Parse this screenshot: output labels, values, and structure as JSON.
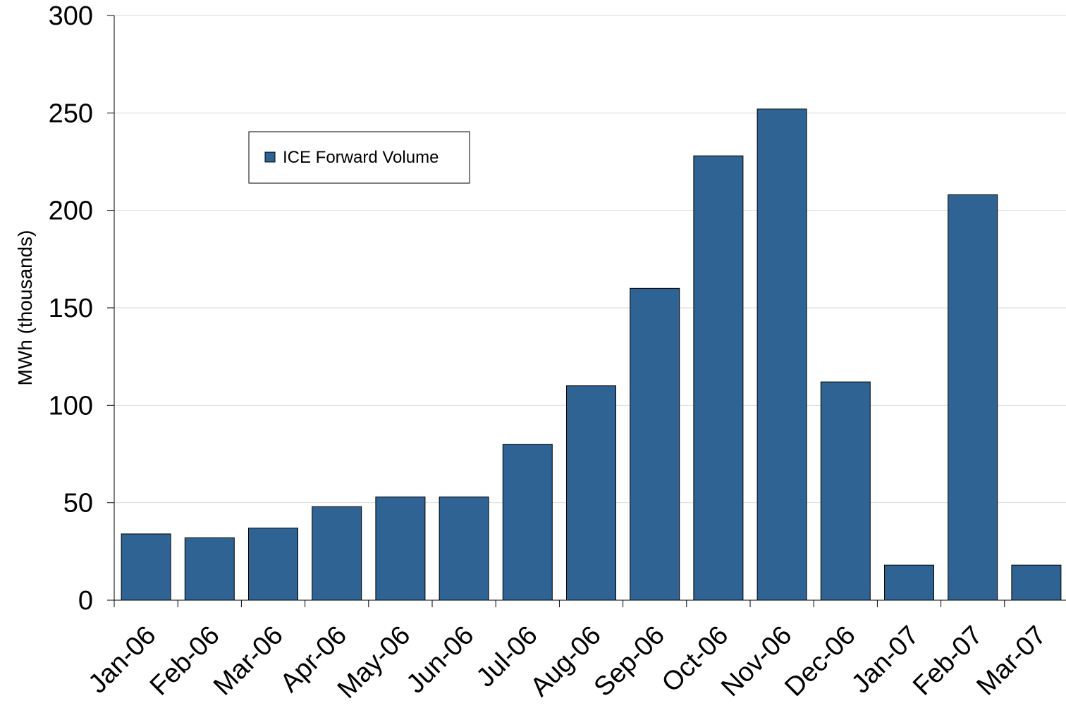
{
  "chart_data": {
    "type": "bar",
    "title": "",
    "xlabel": "",
    "ylabel": "MWh (thousands)",
    "ylim": [
      0,
      300
    ],
    "yticks": [
      0,
      50,
      100,
      150,
      200,
      250,
      300
    ],
    "grid": true,
    "legend_position": "upper-left",
    "categories": [
      "Jan-06",
      "Feb-06",
      "Mar-06",
      "Apr-06",
      "May-06",
      "Jun-06",
      "Jul-06",
      "Aug-06",
      "Sep-06",
      "Oct-06",
      "Nov-06",
      "Dec-06",
      "Jan-07",
      "Feb-07",
      "Mar-07"
    ],
    "series": [
      {
        "name": "ICE Forward Volume",
        "values": [
          34,
          32,
          37,
          48,
          53,
          53,
          80,
          110,
          160,
          228,
          252,
          112,
          18,
          208,
          18
        ],
        "color": "#2e6393"
      }
    ]
  }
}
